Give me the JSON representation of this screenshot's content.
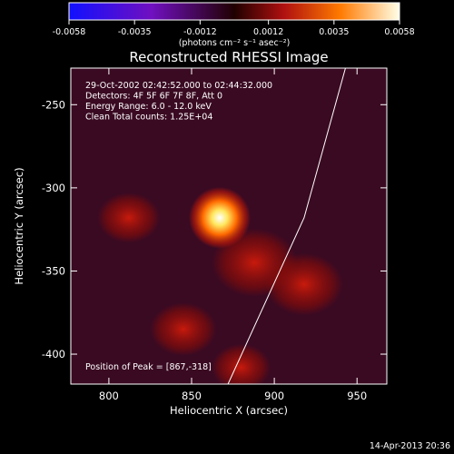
{
  "chart_data": {
    "type": "heatmap",
    "title": "Reconstructed RHESSI Image",
    "xlabel": "Heliocentric X (arcsec)",
    "ylabel": "Heliocentric Y (arcsec)",
    "xlim": [
      777,
      968
    ],
    "ylim": [
      -418,
      -228
    ],
    "x_ticks": [
      "800",
      "850",
      "900",
      "950"
    ],
    "y_ticks": [
      "-250",
      "-300",
      "-350",
      "-400"
    ],
    "colorbar": {
      "label": "(photons cm⁻² s⁻¹ asec⁻²)",
      "range": [
        -0.0058,
        0.0058
      ],
      "ticks": [
        "-0.0058",
        "-0.0035",
        "-0.0012",
        "0.0012",
        "0.0035",
        "0.0058"
      ]
    },
    "annotations": [
      "29-Oct-2002 02:42:52.000 to 02:44:32.000",
      "Detectors: 4F 5F 6F 7F 8F, Att 0",
      "Energy Range: 6.0 - 12.0 keV",
      "Clean     Total counts: 1.25E+04"
    ],
    "peak_label": "Position of Peak = [867,-318]",
    "peak": {
      "x": 867,
      "y": -318,
      "value": 0.0058
    },
    "secondary_sources": [
      {
        "x": 888,
        "y": -345,
        "value": 0.0026
      },
      {
        "x": 918,
        "y": -358,
        "value": 0.0022
      },
      {
        "x": 845,
        "y": -385,
        "value": 0.0016
      },
      {
        "x": 812,
        "y": -318,
        "value": 0.0014
      },
      {
        "x": 880,
        "y": -408,
        "value": 0.0012
      }
    ],
    "limb_line": [
      [
        943,
        -228
      ],
      [
        918,
        -318
      ],
      [
        872,
        -418
      ]
    ]
  },
  "footer": {
    "date": "14-Apr-2013 20:36"
  }
}
